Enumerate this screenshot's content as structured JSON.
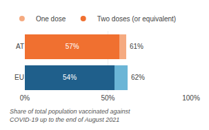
{
  "chart_data": {
    "type": "bar",
    "orientation": "horizontal",
    "stacked": true,
    "categories": [
      "AT",
      "EU"
    ],
    "series": [
      {
        "name": "Two doses (or equivalent)",
        "color": "#F07030",
        "colors": [
          "#F07030",
          "#1F5F8B"
        ],
        "values": [
          57,
          54
        ],
        "value_labels": [
          "57%",
          "54%"
        ]
      },
      {
        "name": "One dose",
        "color": "#F5AA80",
        "colors": [
          "#F5AA80",
          "#6BB5D6"
        ],
        "values": [
          4,
          8
        ],
        "totals": [
          61,
          62
        ],
        "total_labels": [
          "61%",
          "62%"
        ]
      }
    ],
    "xlim": [
      0,
      100
    ],
    "xticks": [
      {
        "value": 0,
        "label": "0%"
      },
      {
        "value": 50,
        "label": "50%"
      },
      {
        "value": 100,
        "label": "100%"
      }
    ],
    "grid": true,
    "data_labels": true,
    "legend": "top",
    "caption": "Share of total population vaccinated against\nCOVID-19 up to the end of August 2021"
  }
}
